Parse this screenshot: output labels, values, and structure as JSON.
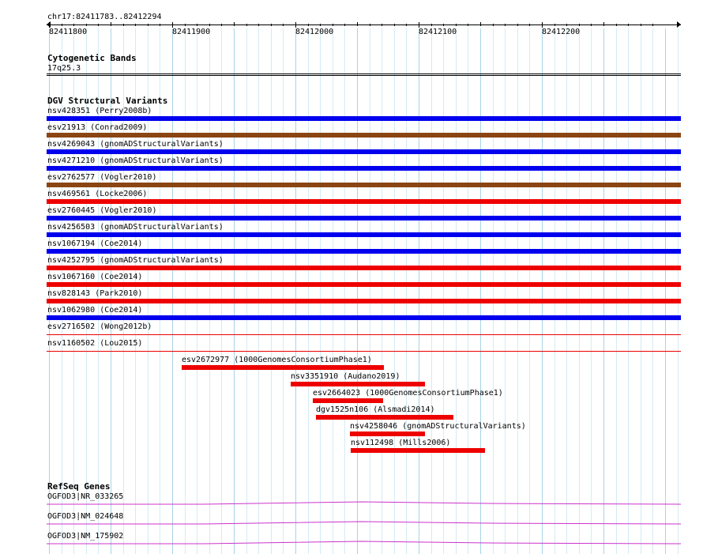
{
  "ruler": {
    "location": "chr17:82411783..82412294",
    "ticks": [
      "82411800",
      "82411900",
      "82412000",
      "82412100",
      "82412200"
    ]
  },
  "cytoband": {
    "title": "Cytogenetic Bands",
    "band": "17q25.3"
  },
  "dgv": {
    "title": "DGV Structural Variants",
    "stacked": [
      {
        "label": "nsv428351 (Perry2008b)",
        "color": "#0000ee"
      },
      {
        "label": "esv21913 (Conrad2009)",
        "color": "#8b4513"
      },
      {
        "label": "nsv4269043 (gnomADStructuralVariants)",
        "color": "#0000ee"
      },
      {
        "label": "nsv4271210 (gnomADStructuralVariants)",
        "color": "#0000ee"
      },
      {
        "label": "esv2762577 (Vogler2010)",
        "color": "#8b4513"
      },
      {
        "label": "nsv469561 (Locke2006)",
        "color": "#ee0000"
      },
      {
        "label": "esv2760445 (Vogler2010)",
        "color": "#0000ee"
      },
      {
        "label": "nsv4256503 (gnomADStructuralVariants)",
        "color": "#0000ee"
      },
      {
        "label": "nsv1067194 (Coe2014)",
        "color": "#0000ee"
      },
      {
        "label": "nsv4252795 (gnomADStructuralVariants)",
        "color": "#ee0000"
      },
      {
        "label": "nsv1067160 (Coe2014)",
        "color": "#ee0000"
      },
      {
        "label": "nsv828143 (Park2010)",
        "color": "#ee0000"
      },
      {
        "label": "nsv1062980 (Coe2014)",
        "color": "#0000ee"
      },
      {
        "label": "esv2716502 (Wong2012b)",
        "color": "#ee0000"
      },
      {
        "label": "nsv1160502 (Lou2015)",
        "color": "#ee0000"
      }
    ],
    "partial": [
      {
        "label": "esv2672977 (1000GenomesConsortiumPhase1)",
        "color": "#ee0000"
      },
      {
        "label": "nsv3351910 (Audano2019)",
        "color": "#ee0000"
      },
      {
        "label": "esv2664023 (1000GenomesConsortiumPhase1)",
        "color": "#ee0000"
      },
      {
        "label": "dgv1525n106 (Alsmadi2014)",
        "color": "#ee0000"
      },
      {
        "label": "nsv4258046 (gnomADStructuralVariants)",
        "color": "#ee0000"
      },
      {
        "label": "nsv112498 (Mills2006)",
        "color": "#ee0000"
      }
    ]
  },
  "refseq": {
    "title": "RefSeq Genes",
    "genes": [
      {
        "label": "OGFOD3|NR_033265",
        "color": "#cc33cc"
      },
      {
        "label": "OGFOD3|NM_024648",
        "color": "#cc33cc"
      },
      {
        "label": "OGFOD3|NM_175902",
        "color": "#cc33cc"
      }
    ]
  },
  "colors": {
    "grid_major": "#a8d4e6",
    "grid_minor": "#d3ebf4",
    "deletion": "#ee0000",
    "duplication": "#0000ee",
    "complex": "#8b4513",
    "gene": "#cc33cc"
  }
}
